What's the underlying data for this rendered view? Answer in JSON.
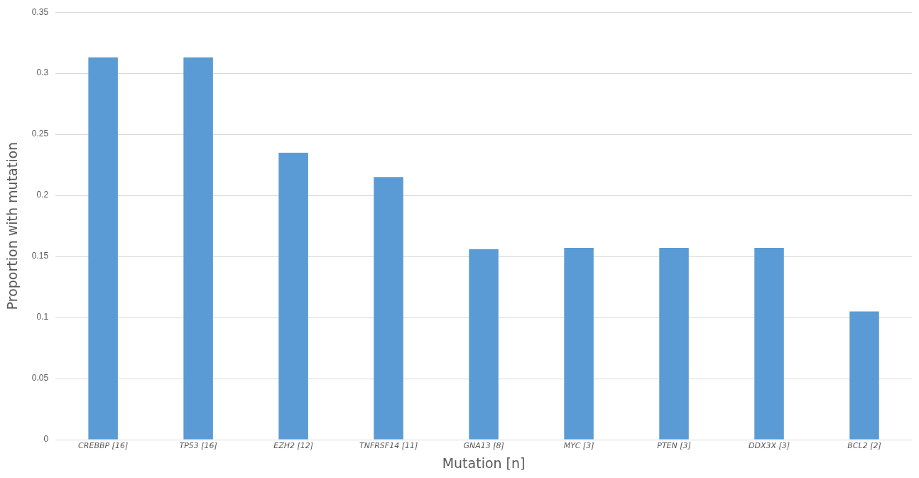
{
  "chart_data": {
    "type": "bar",
    "xlabel": "Mutation [n]",
    "ylabel": "Proportion with mutation",
    "categories": [
      "CREBBP [16]",
      "TP53 [16]",
      "EZH2 [12]",
      "TNFRSF14 [11]",
      "GNA13 [8]",
      "MYC [3]",
      "PTEN [3]",
      "DDX3X [3]",
      "BCL2 [2]"
    ],
    "values": [
      0.313,
      0.313,
      0.235,
      0.215,
      0.156,
      0.157,
      0.157,
      0.157,
      0.105
    ],
    "color": "#5b9bd5",
    "ylim": [
      0,
      0.35
    ],
    "yticks": [
      0,
      0.05,
      0.1,
      0.15,
      0.2,
      0.25,
      0.3,
      0.35
    ],
    "grid": "y",
    "legend": false
  }
}
